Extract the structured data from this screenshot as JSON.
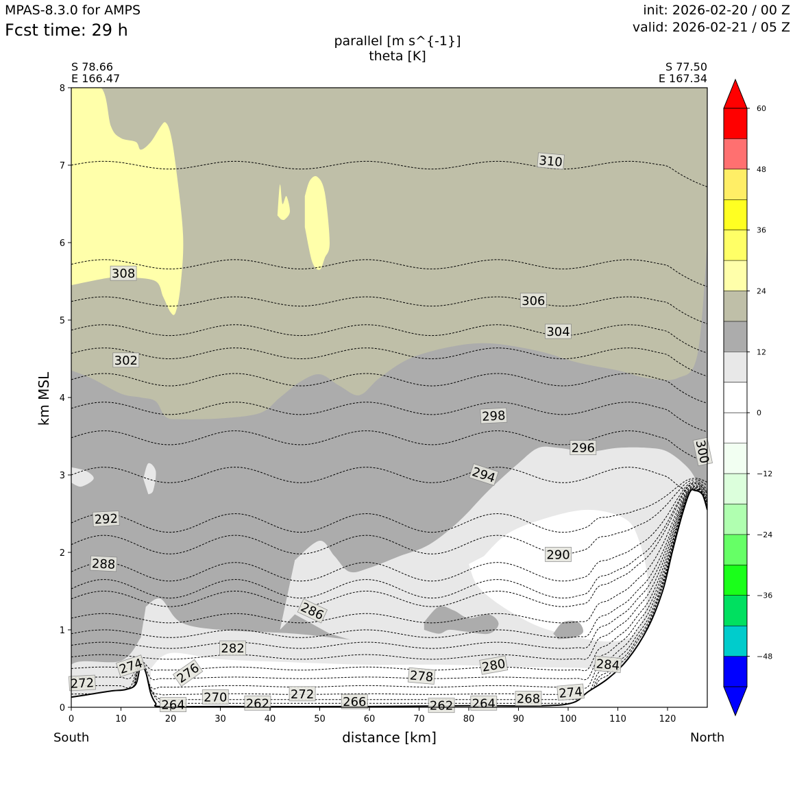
{
  "header": {
    "model": "MPAS-8.3.0 for AMPS",
    "fcst": "Fcst time:   29 h",
    "init": "init: 2026-02-20 / 00 Z",
    "valid": "valid: 2026-02-21 / 05 Z",
    "title_line1": "parallel [m s^{-1}]",
    "title_line2": "theta [K]"
  },
  "endpoints": {
    "left_lat": "S 78.66",
    "left_lon": "E 166.47",
    "right_lat": "S 77.50",
    "right_lon": "E 167.34",
    "south": "South",
    "north": "North"
  },
  "chart_data": {
    "type": "cross-section contour",
    "xlabel": "distance [km]",
    "ylabel": "km MSL",
    "xlim": [
      0,
      128
    ],
    "ylim": [
      0,
      8
    ],
    "xticks": [
      0,
      10,
      20,
      30,
      40,
      50,
      60,
      70,
      80,
      90,
      100,
      110,
      120
    ],
    "yticks": [
      0,
      1,
      2,
      3,
      4,
      5,
      6,
      7,
      8
    ],
    "colorbar": {
      "levels": [
        -54,
        -48,
        -42,
        -36,
        -30,
        -24,
        -18,
        -12,
        -6,
        0,
        6,
        12,
        18,
        24,
        30,
        36,
        42,
        48,
        54,
        60
      ],
      "colors": [
        "#0000ff",
        "#00cccc",
        "#00e060",
        "#1aff1a",
        "#66ff66",
        "#b0ffb0",
        "#dcffdc",
        "#f2fff2",
        "#ffffff",
        "#ffffff",
        "#e8e8e8",
        "#acacac",
        "#bfbfa8",
        "#ffffaa",
        "#ffff66",
        "#ffff22",
        "#ffee66",
        "#ff7070",
        "#ff0000"
      ],
      "over_color": "#ff0000",
      "under_color": "#0000ff",
      "ticks": [
        -48,
        -36,
        -24,
        -12,
        0,
        12,
        24,
        36,
        48,
        60
      ],
      "tick_labels": [
        "−48",
        "−36",
        "−24",
        "−12",
        "0",
        "12",
        "24",
        "36",
        "48",
        "60"
      ]
    },
    "shading": {
      "background_18_24": "#bfbfa8",
      "upper_12_18_top": [
        [
          0,
          4.35
        ],
        [
          4,
          4.25
        ],
        [
          10,
          4.05
        ],
        [
          14,
          4.0
        ],
        [
          17,
          3.95
        ],
        [
          19,
          3.75
        ],
        [
          22,
          3.72
        ],
        [
          30,
          3.73
        ],
        [
          38,
          3.8
        ],
        [
          42,
          4.0
        ],
        [
          46,
          4.2
        ],
        [
          50,
          4.3
        ],
        [
          54,
          4.15
        ],
        [
          58,
          4.03
        ],
        [
          62,
          4.25
        ],
        [
          68,
          4.5
        ],
        [
          76,
          4.65
        ],
        [
          84,
          4.7
        ],
        [
          94,
          4.6
        ],
        [
          102,
          4.45
        ],
        [
          110,
          4.35
        ],
        [
          116,
          4.25
        ],
        [
          122,
          4.25
        ],
        [
          126,
          4.55
        ],
        [
          128,
          6.0
        ]
      ],
      "light_6_12_top": [
        [
          45,
          1.9
        ],
        [
          50,
          2.15
        ],
        [
          53,
          1.95
        ],
        [
          56,
          1.75
        ],
        [
          60,
          1.8
        ],
        [
          66,
          1.95
        ],
        [
          72,
          2.1
        ],
        [
          78,
          2.4
        ],
        [
          84,
          2.8
        ],
        [
          90,
          3.15
        ],
        [
          94,
          3.35
        ],
        [
          98,
          3.35
        ],
        [
          104,
          3.3
        ],
        [
          110,
          3.35
        ],
        [
          116,
          3.35
        ],
        [
          120,
          3.3
        ],
        [
          124,
          3.1
        ],
        [
          126,
          2.9
        ],
        [
          128,
          2.6
        ]
      ],
      "yellow_24_30_left": [
        [
          0,
          8
        ],
        [
          6,
          8
        ],
        [
          8,
          7.5
        ],
        [
          10,
          7.35
        ],
        [
          13,
          7.3
        ],
        [
          14,
          7.2
        ],
        [
          16,
          7.3
        ],
        [
          18,
          7.5
        ],
        [
          19,
          7.55
        ],
        [
          20,
          7.4
        ],
        [
          21,
          7.0
        ],
        [
          22.5,
          6.1
        ],
        [
          22,
          5.45
        ],
        [
          21,
          5.1
        ],
        [
          20,
          5.1
        ],
        [
          18.5,
          5.3
        ],
        [
          17,
          5.5
        ],
        [
          12,
          5.55
        ],
        [
          8,
          5.55
        ],
        [
          0,
          5.45
        ]
      ],
      "yellow_blob_mid": [
        [
          47,
          6.6
        ],
        [
          48,
          6.8
        ],
        [
          49.5,
          6.85
        ],
        [
          51,
          6.65
        ],
        [
          52,
          6.0
        ],
        [
          51,
          5.8
        ],
        [
          50,
          5.65
        ],
        [
          48.5,
          5.75
        ],
        [
          47,
          6.2
        ]
      ]
    },
    "theta_contours": {
      "levels_K": [
        262,
        264,
        266,
        268,
        270,
        272,
        274,
        276,
        278,
        280,
        282,
        284,
        286,
        288,
        290,
        292,
        294,
        296,
        298,
        300,
        302,
        304,
        306,
        308,
        310
      ],
      "line_style": "dashed",
      "labels": [
        {
          "value": "310",
          "x": 96.5,
          "y": 7.05,
          "angle": 5
        },
        {
          "value": "308",
          "x": 10.5,
          "y": 5.6,
          "angle": 0
        },
        {
          "value": "306",
          "x": 93,
          "y": 5.25,
          "angle": 0
        },
        {
          "value": "304",
          "x": 98,
          "y": 4.85,
          "angle": 0
        },
        {
          "value": "302",
          "x": 11,
          "y": 4.48,
          "angle": 0
        },
        {
          "value": "300",
          "x": 127,
          "y": 3.3,
          "angle": 78
        },
        {
          "value": "298",
          "x": 85,
          "y": 3.76,
          "angle": -3
        },
        {
          "value": "296",
          "x": 103,
          "y": 3.35,
          "angle": 0
        },
        {
          "value": "294",
          "x": 83,
          "y": 3.0,
          "angle": 18
        },
        {
          "value": "292",
          "x": 7,
          "y": 2.43,
          "angle": -3
        },
        {
          "value": "290",
          "x": 98,
          "y": 1.97,
          "angle": 0
        },
        {
          "value": "288",
          "x": 6.5,
          "y": 1.85,
          "angle": 3
        },
        {
          "value": "286",
          "x": 48.5,
          "y": 1.24,
          "angle": 25
        },
        {
          "value": "284",
          "x": 108,
          "y": 0.55,
          "angle": 5
        },
        {
          "value": "282",
          "x": 32.5,
          "y": 0.76,
          "angle": 0
        },
        {
          "value": "280",
          "x": 85,
          "y": 0.54,
          "angle": -10
        },
        {
          "value": "278",
          "x": 70.5,
          "y": 0.4,
          "angle": 5
        },
        {
          "value": "276",
          "x": 23.5,
          "y": 0.44,
          "angle": -35
        },
        {
          "value": "274",
          "x": 12,
          "y": 0.53,
          "angle": -18
        },
        {
          "value": "274",
          "x": 100.5,
          "y": 0.19,
          "angle": -5
        },
        {
          "value": "272",
          "x": 2.2,
          "y": 0.31,
          "angle": -3
        },
        {
          "value": "272",
          "x": 46.5,
          "y": 0.17,
          "angle": 0
        },
        {
          "value": "270",
          "x": 29,
          "y": 0.13,
          "angle": 0
        },
        {
          "value": "268",
          "x": 92,
          "y": 0.11,
          "angle": 0
        },
        {
          "value": "266",
          "x": 57,
          "y": 0.07,
          "angle": 0
        },
        {
          "value": "264",
          "x": 20.5,
          "y": 0.03,
          "angle": 0
        },
        {
          "value": "264",
          "x": 83,
          "y": 0.05,
          "angle": 0
        },
        {
          "value": "262",
          "x": 37.5,
          "y": 0.05,
          "angle": 0
        },
        {
          "value": "262",
          "x": 74.5,
          "y": 0.02,
          "angle": 0
        }
      ]
    },
    "terrain_km": [
      [
        0,
        0.13
      ],
      [
        4,
        0.17
      ],
      [
        8,
        0.21
      ],
      [
        11,
        0.23
      ],
      [
        13,
        0.3
      ],
      [
        14,
        0.55
      ],
      [
        15,
        0.45
      ],
      [
        16,
        0.18
      ],
      [
        17,
        0.05
      ],
      [
        18,
        0.01
      ],
      [
        30,
        0.01
      ],
      [
        60,
        0.01
      ],
      [
        80,
        0.02
      ],
      [
        95,
        0.02
      ],
      [
        101,
        0.06
      ],
      [
        104,
        0.2
      ],
      [
        108,
        0.37
      ],
      [
        112,
        0.62
      ],
      [
        116,
        1.02
      ],
      [
        119,
        1.5
      ],
      [
        121,
        2.02
      ],
      [
        123,
        2.5
      ],
      [
        124.5,
        2.78
      ],
      [
        125.5,
        2.8
      ],
      [
        127,
        2.75
      ],
      [
        128,
        2.55
      ]
    ]
  }
}
